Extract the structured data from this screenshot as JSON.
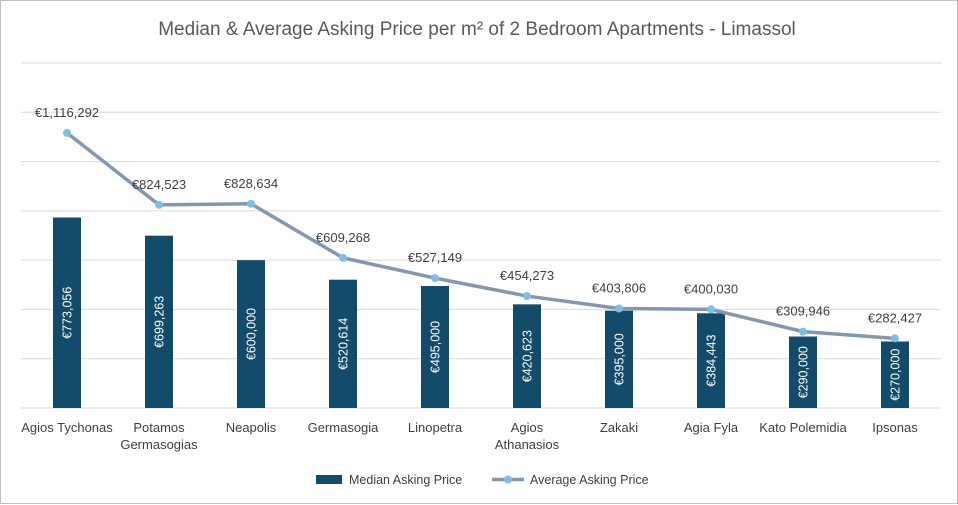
{
  "chart_data": {
    "type": "bar",
    "title": "Median & Average Asking Price per m² of 2 Bedroom Apartments - Limassol",
    "xlabel": "",
    "ylabel": "",
    "ylim": [
      0,
      1400000
    ],
    "grid": true,
    "legend_position": "bottom",
    "categories": [
      [
        "Agios Tychonas"
      ],
      [
        "Potamos",
        "Germasogias"
      ],
      [
        "Neapolis"
      ],
      [
        "Germasogia"
      ],
      [
        "Linopetra"
      ],
      [
        "Agios",
        "Athanasios"
      ],
      [
        "Zakaki"
      ],
      [
        "Agia Fyla"
      ],
      [
        "Kato Polemidia"
      ],
      [
        "Ipsonas"
      ]
    ],
    "series": [
      {
        "name": "Median Asking Price",
        "type": "bar",
        "color": "#134b6b",
        "values": [
          773056,
          699263,
          600000,
          520614,
          495000,
          420623,
          395000,
          384443,
          290000,
          270000
        ],
        "labels": [
          "€773,056",
          "€699,263",
          "€600,000",
          "€520,614",
          "€495,000",
          "€420,623",
          "€395,000",
          "€384,443",
          "€290,000",
          "€270,000"
        ]
      },
      {
        "name": "Average Asking Price",
        "type": "line",
        "color": "#8497b0",
        "marker_color": "#7cc0e8",
        "values": [
          1116292,
          824523,
          828634,
          609268,
          527149,
          454273,
          403806,
          400030,
          309946,
          282427
        ],
        "labels": [
          "€1,116,292",
          "€824,523",
          "€828,634",
          "€609,268",
          "€527,149",
          "€454,273",
          "€403,806",
          "€400,030",
          "€309,946",
          "€282,427"
        ]
      }
    ]
  }
}
